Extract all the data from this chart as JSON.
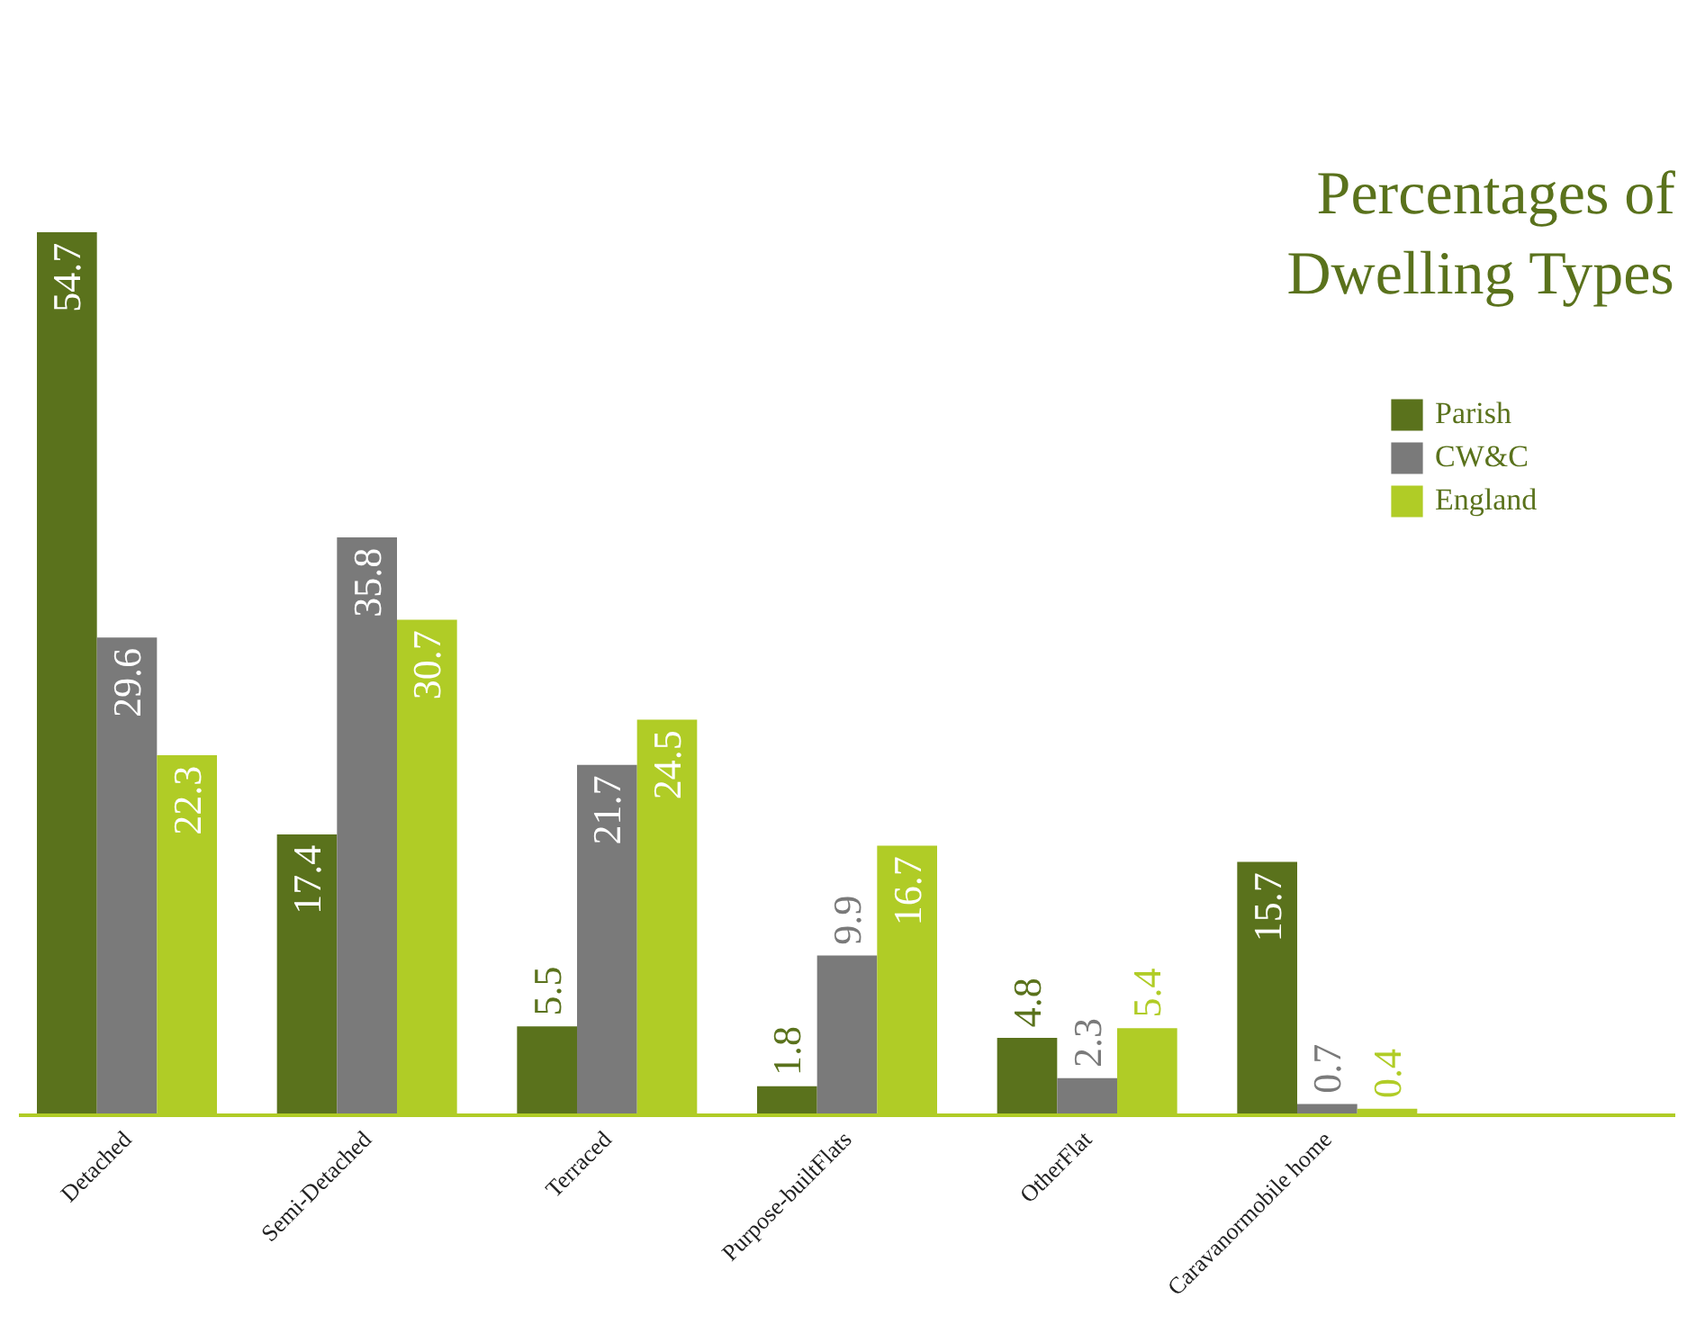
{
  "chart_data": {
    "type": "bar",
    "title": "Percentages of Dwelling Types",
    "categories": [
      "Detached",
      "Semi-Detached",
      "Terraced",
      "Purpose-builtFlats",
      "OtherFlat",
      "Caravanormobile home"
    ],
    "series": [
      {
        "name": "Parish",
        "color": "#5a721c",
        "values": [
          54.7,
          17.4,
          5.5,
          1.8,
          4.8,
          15.7
        ]
      },
      {
        "name": "CW&C",
        "color": "#7a7a7a",
        "values": [
          29.6,
          35.8,
          21.7,
          9.9,
          2.3,
          0.7
        ]
      },
      {
        "name": "England",
        "color": "#b0cc26",
        "values": [
          22.3,
          30.7,
          24.5,
          16.7,
          5.4,
          0.4
        ]
      }
    ],
    "data_labels": true,
    "grid": false,
    "legend": "top right"
  }
}
